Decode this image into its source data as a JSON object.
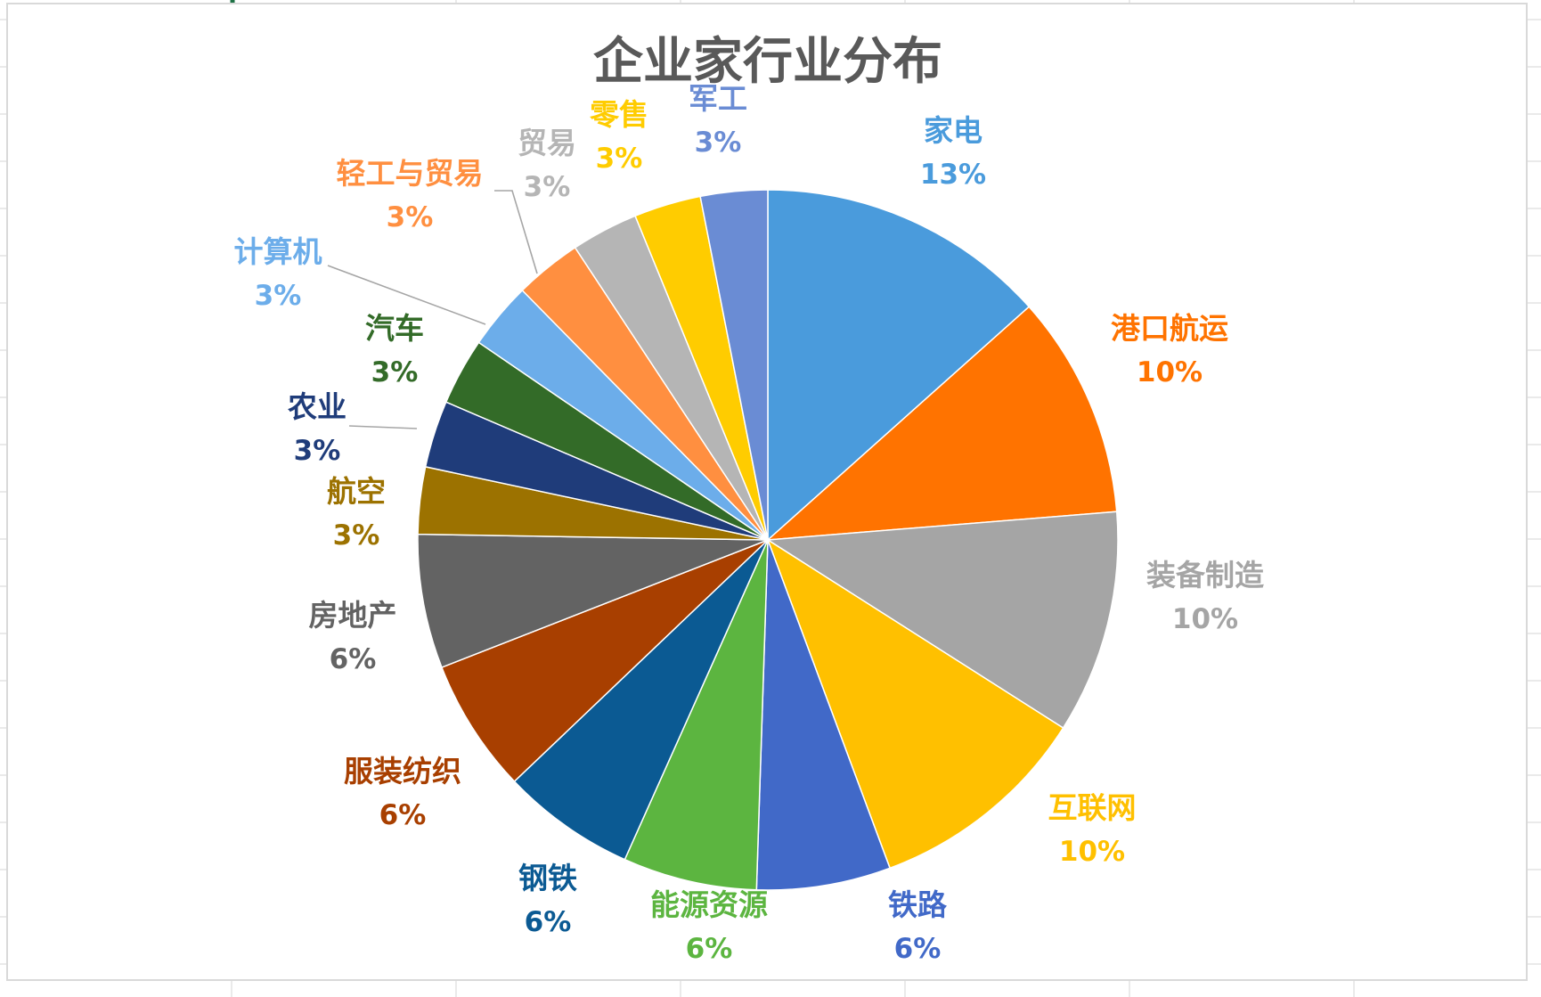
{
  "chart_data": {
    "type": "pie",
    "title": "企业家行业分布",
    "start_angle_deg": 0,
    "direction": "clockwise",
    "slices": [
      {
        "label": "家电",
        "value": 13,
        "percent_label": "13%",
        "color": "#4a9bdc"
      },
      {
        "label": "港口航运",
        "value": 10,
        "percent_label": "10%",
        "color": "#ff7300"
      },
      {
        "label": "装备制造",
        "value": 10,
        "percent_label": "10%",
        "color": "#a5a5a5"
      },
      {
        "label": "互联网",
        "value": 10,
        "percent_label": "10%",
        "color": "#ffc000"
      },
      {
        "label": "铁路",
        "value": 6,
        "percent_label": "6%",
        "color": "#4169c8"
      },
      {
        "label": "能源资源",
        "value": 6,
        "percent_label": "6%",
        "color": "#5cb540"
      },
      {
        "label": "钢铁",
        "value": 6,
        "percent_label": "6%",
        "color": "#0b5a93"
      },
      {
        "label": "服装纺织",
        "value": 6,
        "percent_label": "6%",
        "color": "#a83f00"
      },
      {
        "label": "房地产",
        "value": 6,
        "percent_label": "6%",
        "color": "#636363"
      },
      {
        "label": "航空",
        "value": 3,
        "percent_label": "3%",
        "color": "#9c7200"
      },
      {
        "label": "农业",
        "value": 3,
        "percent_label": "3%",
        "color": "#1f3c7a"
      },
      {
        "label": "汽车",
        "value": 3,
        "percent_label": "3%",
        "color": "#336b28"
      },
      {
        "label": "计算机",
        "value": 3,
        "percent_label": "3%",
        "color": "#6cadea"
      },
      {
        "label": "轻工与贸易",
        "value": 3,
        "percent_label": "3%",
        "color": "#ff8f40"
      },
      {
        "label": "贸易",
        "value": 3,
        "percent_label": "3%",
        "color": "#b5b5b5"
      },
      {
        "label": "零售",
        "value": 3,
        "percent_label": "3%",
        "color": "#ffcc00"
      },
      {
        "label": "军工",
        "value": 3,
        "percent_label": "3%",
        "color": "#6a8cd4"
      }
    ],
    "data_labels": "outside, category name and percentage",
    "legend": "none"
  }
}
